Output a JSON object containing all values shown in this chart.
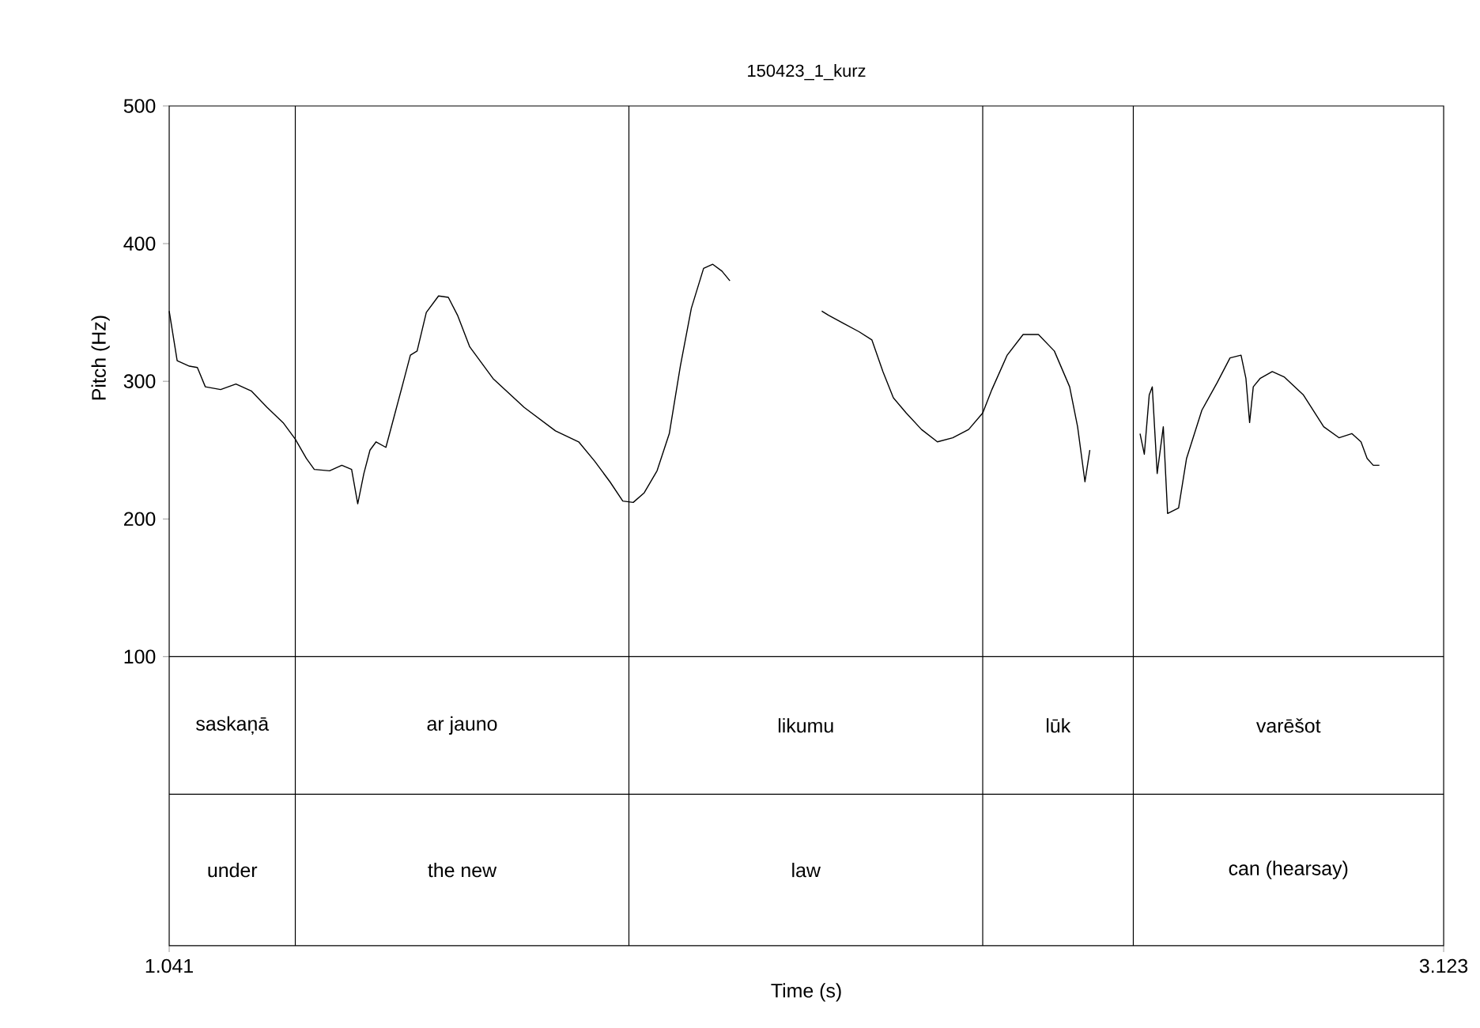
{
  "chart_data": {
    "type": "line",
    "title": "150423_1_kurz",
    "xlabel": "Time (s)",
    "ylabel": "Pitch (Hz)",
    "xlim": [
      1.041,
      3.123
    ],
    "ylim": [
      -110,
      500
    ],
    "xticks": [
      1.041,
      3.123
    ],
    "yticks": [
      100,
      200,
      300,
      400,
      500
    ],
    "series": [
      {
        "color": "#000000",
        "x": [
          1.041,
          1.054,
          1.074,
          1.087,
          1.1,
          1.125,
          1.15,
          1.175,
          1.201,
          1.227,
          1.247,
          1.265,
          1.278,
          1.303,
          1.323,
          1.339,
          1.349,
          1.359,
          1.369,
          1.379,
          1.395,
          1.41,
          1.425,
          1.435,
          1.446,
          1.461,
          1.481,
          1.497,
          1.512,
          1.532,
          1.57,
          1.621,
          1.672,
          1.71,
          1.736,
          1.761,
          1.782,
          1.799,
          1.817,
          1.838,
          1.858,
          1.876,
          1.894,
          1.914,
          1.929,
          1.944,
          1.957,
          2.03,
          2.107,
          2.118,
          2.143,
          2.168,
          2.189,
          2.207,
          2.224,
          2.245,
          2.27,
          2.296,
          2.321,
          2.347,
          2.37,
          2.385,
          2.41,
          2.436,
          2.461,
          2.487,
          2.512,
          2.525,
          2.537,
          2.545,
          2.59,
          2.627,
          2.634,
          2.642,
          2.647,
          2.655,
          2.665,
          2.672,
          2.69,
          2.703,
          2.728,
          2.753,
          2.774,
          2.792,
          2.8,
          2.806,
          2.812,
          2.823,
          2.843,
          2.863,
          2.894,
          2.927,
          2.952,
          2.973,
          2.988,
          2.998,
          3.008,
          3.018
        ],
        "values": [
          351,
          315,
          311,
          310,
          296,
          294,
          298,
          293,
          281,
          270,
          258,
          244,
          236,
          235,
          239,
          236,
          211,
          233,
          250,
          256,
          252,
          277,
          302,
          319,
          322,
          350,
          362,
          361,
          348,
          325,
          302,
          281,
          264,
          256,
          242,
          227,
          213,
          212,
          219,
          235,
          262,
          311,
          353,
          382,
          385,
          380,
          373,
          null,
          351,
          348,
          342,
          336,
          330,
          307,
          288,
          277,
          265,
          256,
          259,
          265,
          277,
          294,
          319,
          334,
          334,
          322,
          296,
          267,
          227,
          250,
          null,
          262,
          247,
          290,
          296,
          233,
          267,
          204,
          208,
          244,
          279,
          299,
          317,
          319,
          302,
          270,
          296,
          302,
          307,
          303,
          290,
          267,
          259,
          262,
          256,
          244,
          239,
          239
        ]
      }
    ],
    "ref_lines": [
      {
        "axis": "y",
        "value": 100
      },
      {
        "axis": "y",
        "value": 0
      },
      {
        "axis": "x",
        "value": 1.247
      },
      {
        "axis": "x",
        "value": 1.792
      },
      {
        "axis": "x",
        "value": 2.37
      },
      {
        "axis": "x",
        "value": 2.616
      }
    ],
    "annotations": [
      "saskaņā",
      "ar jauno",
      "likumu",
      "lūk",
      "varēšot",
      "under",
      "the new",
      "law",
      null,
      "can (hearsay)"
    ],
    "grid": false
  }
}
